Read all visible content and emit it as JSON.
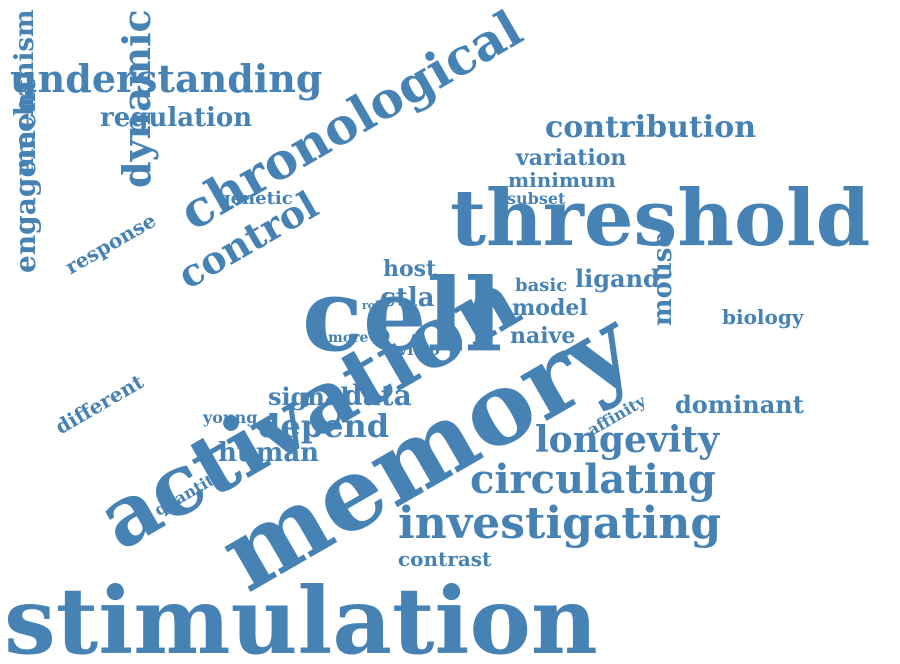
{
  "color": "#4682b4",
  "words": [
    "stimulation",
    "memory",
    "activation",
    "cell",
    "threshold",
    "chronological",
    "investigating",
    "circulating",
    "understanding",
    "longevity",
    "contribution",
    "dynamic",
    "control",
    "depend",
    "regulation",
    "engagement",
    "mechanism",
    "mouse",
    "human",
    "variation",
    "ligand",
    "data",
    "dominant",
    "model",
    "naive",
    "minimum",
    "contrast",
    "biology",
    "signal",
    "basic",
    "ctla",
    "host",
    "response",
    "different",
    "genetic",
    "subset",
    "young",
    "affinity",
    "quantity",
    "vitro",
    "more",
    "role"
  ]
}
